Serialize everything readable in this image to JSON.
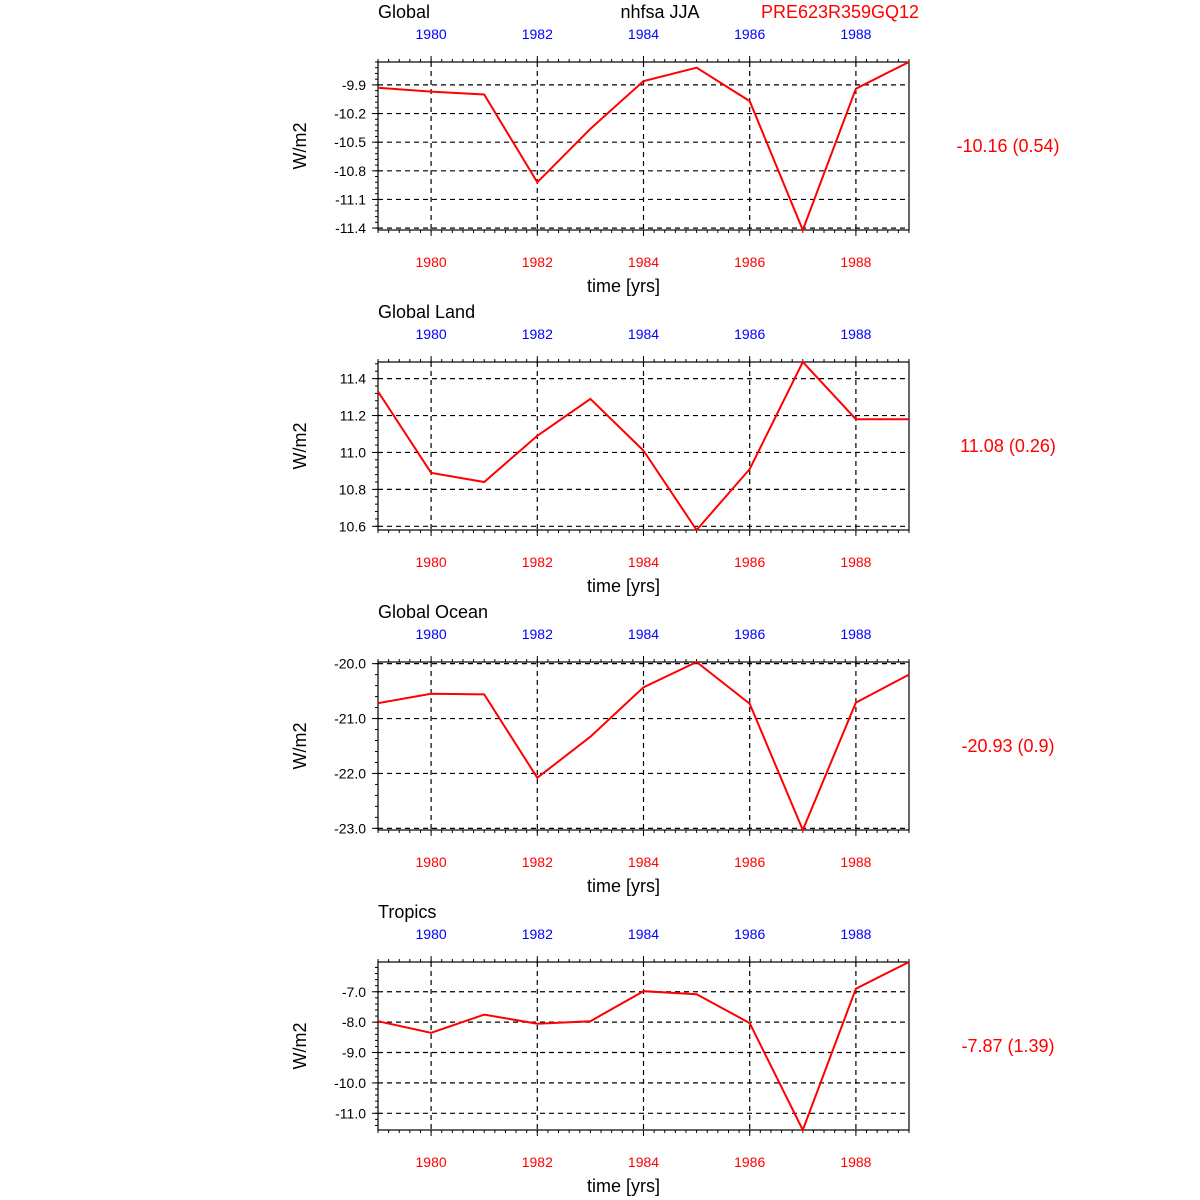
{
  "header": {
    "variable": "nhfsa JJA",
    "run": "PRE623R359GQ12"
  },
  "colors": {
    "series": "#ff0000",
    "top_ticks": "#0000ff",
    "bottom_ticks": "#ff0000",
    "stats": "#ff0000"
  },
  "chart_data": [
    {
      "type": "line",
      "title": "Global",
      "xlabel": "time [yrs]",
      "ylabel": "W/m2",
      "x": [
        1979,
        1980,
        1981,
        1982,
        1983,
        1984,
        1985,
        1986,
        1987,
        1988,
        1989
      ],
      "series": [
        {
          "values": [
            -9.93,
            -9.97,
            -10.0,
            -10.92,
            -10.36,
            -9.86,
            -9.72,
            -10.07,
            -11.42,
            -9.94,
            -9.66
          ]
        }
      ],
      "xlim": [
        1979,
        1989
      ],
      "ylim": [
        -11.42,
        -9.66
      ],
      "xticks": [
        "1980",
        "1982",
        "1984",
        "1986",
        "1988"
      ],
      "yticks": [
        "-9.9",
        "-10.2",
        "-10.5",
        "-10.8",
        "-11.1",
        "-11.4"
      ],
      "grid": true,
      "stats_label": "-10.16 (0.54)"
    },
    {
      "type": "line",
      "title": "Global Land",
      "xlabel": "time [yrs]",
      "ylabel": "W/m2",
      "x": [
        1979,
        1980,
        1981,
        1982,
        1983,
        1984,
        1985,
        1986,
        1987,
        1988,
        1989
      ],
      "series": [
        {
          "values": [
            11.33,
            10.89,
            10.84,
            11.09,
            11.29,
            11.01,
            10.58,
            10.91,
            11.49,
            11.18,
            11.18
          ]
        }
      ],
      "xlim": [
        1979,
        1989
      ],
      "ylim": [
        10.58,
        11.49
      ],
      "xticks": [
        "1980",
        "1982",
        "1984",
        "1986",
        "1988"
      ],
      "yticks": [
        "11.4",
        "11.2",
        "11.0",
        "10.8",
        "10.6"
      ],
      "grid": true,
      "stats_label": "11.08 (0.26)"
    },
    {
      "type": "line",
      "title": "Global Ocean",
      "xlabel": "time [yrs]",
      "ylabel": "W/m2",
      "x": [
        1979,
        1980,
        1981,
        1982,
        1983,
        1984,
        1985,
        1986,
        1987,
        1988,
        1989
      ],
      "series": [
        {
          "values": [
            -20.72,
            -20.55,
            -20.56,
            -22.08,
            -21.33,
            -20.43,
            -19.97,
            -20.73,
            -23.03,
            -20.71,
            -20.2
          ]
        }
      ],
      "xlim": [
        1979,
        1989
      ],
      "ylim": [
        -23.03,
        -19.97
      ],
      "xticks": [
        "1980",
        "1982",
        "1984",
        "1986",
        "1988"
      ],
      "yticks": [
        "-20.0",
        "-21.0",
        "-22.0",
        "-23.0"
      ],
      "grid": true,
      "stats_label": "-20.93 (0.9)"
    },
    {
      "type": "line",
      "title": "Tropics",
      "xlabel": "time [yrs]",
      "ylabel": "W/m2",
      "x": [
        1979,
        1980,
        1981,
        1982,
        1983,
        1984,
        1985,
        1986,
        1987,
        1988,
        1989
      ],
      "series": [
        {
          "values": [
            -7.97,
            -8.35,
            -7.75,
            -8.05,
            -7.97,
            -6.98,
            -7.08,
            -8.03,
            -11.55,
            -6.9,
            -6.02
          ]
        }
      ],
      "xlim": [
        1979,
        1989
      ],
      "ylim": [
        -11.55,
        -6.02
      ],
      "xticks": [
        "1980",
        "1982",
        "1984",
        "1986",
        "1988"
      ],
      "yticks": [
        "-7.0",
        "-8.0",
        "-9.0",
        "-10.0",
        "-11.0"
      ],
      "grid": true,
      "stats_label": "-7.87 (1.39)"
    }
  ]
}
